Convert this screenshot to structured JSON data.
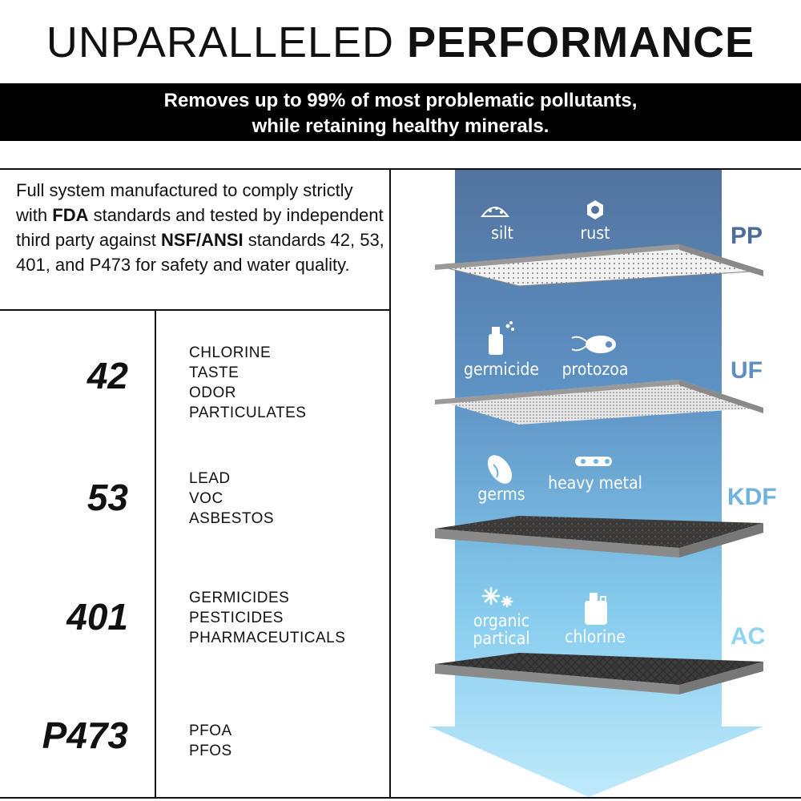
{
  "header": {
    "title_light": "UNPARALLELED",
    "title_bold": "PERFORMANCE",
    "banner_line1": "Removes up to 99% of most problematic pollutants,",
    "banner_line2": "while retaining healthy minerals."
  },
  "description": {
    "part1": "Full system manufactured to comply strictly with ",
    "bold1": "FDA",
    "part2": " standards and tested by independent third party against ",
    "bold2": "NSF/ANSI",
    "part3": " standards 42, 53, 401, and P473 for safety and water quality."
  },
  "standards": [
    {
      "number": "42",
      "items": [
        "CHLORINE",
        "TASTE",
        "ODOR",
        "PARTICULATES"
      ]
    },
    {
      "number": "53",
      "items": [
        "LEAD",
        "VOC",
        "ASBESTOS"
      ]
    },
    {
      "number": "401",
      "items": [
        "GERMICIDES",
        "PESTICIDES",
        "PHARMACEUTICALS"
      ]
    },
    {
      "number": "P473",
      "items": [
        "PFOA",
        "PFOS"
      ]
    }
  ],
  "layers": [
    {
      "label": "PP",
      "color": "#4a6d9a",
      "contaminants": [
        {
          "name": "silt",
          "icon": "sand-pile-icon"
        },
        {
          "name": "rust",
          "icon": "hex-nut-icon"
        }
      ]
    },
    {
      "label": "UF",
      "color": "#5e8fbf",
      "contaminants": [
        {
          "name": "germicide",
          "icon": "spray-bottle-icon"
        },
        {
          "name": "protozoa",
          "icon": "protozoa-icon"
        }
      ]
    },
    {
      "label": "KDF",
      "color": "#6fb2df",
      "contaminants": [
        {
          "name": "germs",
          "icon": "bacteria-icon"
        },
        {
          "name": "heavy metal",
          "icon": "chain-icon"
        }
      ]
    },
    {
      "label": "AC",
      "color": "#8fd3f2",
      "contaminants": [
        {
          "name": "organic partical",
          "icon": "sparkle-icon"
        },
        {
          "name": "chlorine",
          "icon": "jug-icon"
        }
      ]
    }
  ]
}
